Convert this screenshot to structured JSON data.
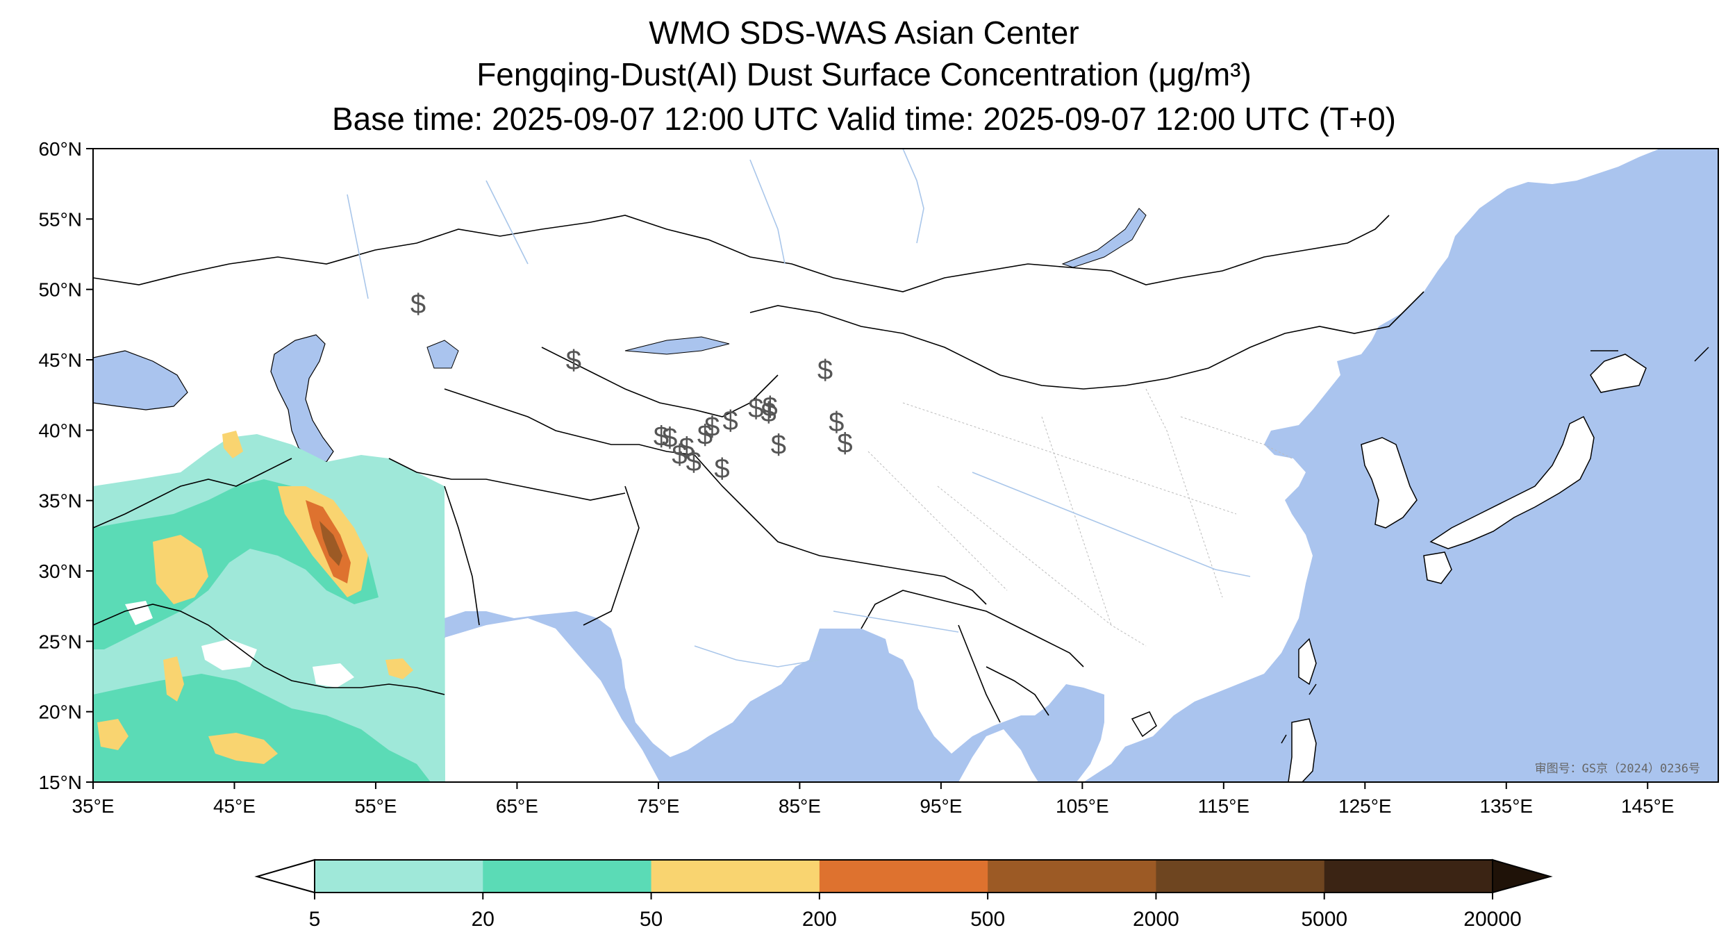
{
  "titles": {
    "line1": "WMO SDS-WAS Asian Center",
    "line2": "Fengqing-Dust(AI) Dust Surface Concentration (μg/m³)",
    "line3": "Base time: 2025-09-07 12:00 UTC Valid time: 2025-09-07 12:00 UTC (T+0)"
  },
  "map": {
    "lon_range": [
      35,
      150
    ],
    "lat_range": [
      15,
      60
    ],
    "x_ticks": [
      "35°E",
      "45°E",
      "55°E",
      "65°E",
      "75°E",
      "85°E",
      "95°E",
      "105°E",
      "115°E",
      "125°E",
      "135°E",
      "145°E"
    ],
    "y_ticks": [
      "60°N",
      "55°N",
      "50°N",
      "45°N",
      "40°N",
      "35°N",
      "30°N",
      "25°N",
      "20°N",
      "15°N"
    ],
    "watermark": "审图号：GS京（2024）0236号",
    "colors": {
      "ocean": "#aac4ee",
      "land": "#ffffff",
      "border": "#000000",
      "river": "#a9c6ea",
      "province": "#bbbbbb"
    }
  },
  "dust_symbol": "$",
  "dust_stations": [
    {
      "lon": 58.0,
      "lat": 49.0
    },
    {
      "lon": 69.0,
      "lat": 45.0
    },
    {
      "lon": 75.2,
      "lat": 39.6
    },
    {
      "lon": 75.8,
      "lat": 39.5
    },
    {
      "lon": 77.0,
      "lat": 38.8
    },
    {
      "lon": 76.5,
      "lat": 38.3
    },
    {
      "lon": 77.5,
      "lat": 37.8
    },
    {
      "lon": 78.3,
      "lat": 39.7
    },
    {
      "lon": 78.8,
      "lat": 40.3
    },
    {
      "lon": 79.5,
      "lat": 37.3
    },
    {
      "lon": 80.1,
      "lat": 40.7
    },
    {
      "lon": 81.9,
      "lat": 41.6
    },
    {
      "lon": 82.8,
      "lat": 41.3
    },
    {
      "lon": 82.9,
      "lat": 41.7
    },
    {
      "lon": 83.5,
      "lat": 39.0
    },
    {
      "lon": 86.8,
      "lat": 44.3
    },
    {
      "lon": 87.6,
      "lat": 40.6
    },
    {
      "lon": 88.2,
      "lat": 39.1
    }
  ],
  "colorbar": {
    "ticks": [
      "5",
      "20",
      "50",
      "200",
      "500",
      "2000",
      "5000",
      "20000"
    ],
    "colors": [
      "#9fe8d9",
      "#5bdbb6",
      "#f9d470",
      "#de722f",
      "#9c5a25",
      "#6e4520",
      "#3b2414"
    ]
  }
}
